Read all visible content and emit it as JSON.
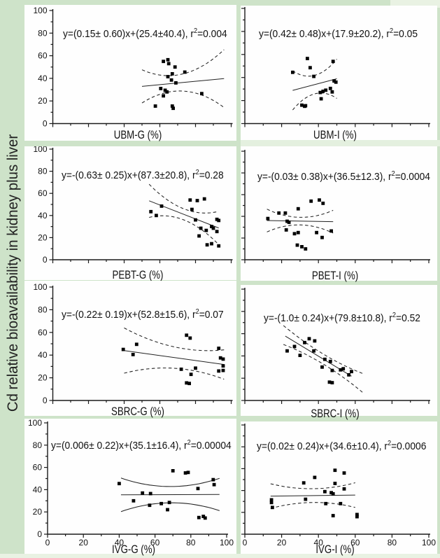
{
  "figure": {
    "ylabel": "Cd relative bioavailability in kidney plus liver",
    "background_color": "#cee3c9",
    "plot_background": "#fefefe",
    "ink_color": "#111111",
    "marker": {
      "shape": "square",
      "color": "#000000"
    }
  },
  "chart_data": [
    {
      "type": "scatter",
      "xlabel": "UBM-G (%)",
      "eq": {
        "left": "y=(0.15± 0.60)x+(25.4±40.4), r",
        "sup": "2",
        "right": "=0.004"
      },
      "x_range": [
        0,
        100
      ],
      "y_range": [
        0,
        100
      ],
      "x_major_tick": 20,
      "x_minor_tick": 10,
      "y_major_tick": 20,
      "y_minor_tick": 10,
      "y_tick_labels": [
        "0",
        "20",
        "40",
        "60",
        "80",
        "100"
      ],
      "fit": {
        "slope": 0.15,
        "intercept": 25.4,
        "x_start": 50,
        "x_end": 96
      },
      "ci": {
        "style": "dashed",
        "half_mid": 7,
        "half_end_extra": 16,
        "xm": 68,
        "hr": 26
      },
      "points": [
        [
          57.5,
          15.5
        ],
        [
          60.5,
          31
        ],
        [
          62,
          55
        ],
        [
          62,
          24.5
        ],
        [
          63,
          29.5
        ],
        [
          64,
          28
        ],
        [
          64.5,
          56.5
        ],
        [
          64.5,
          41.5
        ],
        [
          65,
          53
        ],
        [
          66.5,
          38.5
        ],
        [
          67,
          44
        ],
        [
          67,
          15.5
        ],
        [
          67.5,
          13.5
        ],
        [
          68.5,
          50
        ],
        [
          69,
          36
        ],
        [
          74,
          45.5
        ],
        [
          83.5,
          26.5
        ]
      ]
    },
    {
      "type": "scatter",
      "xlabel": "UBM-I (%)",
      "eq": {
        "left": "y=(0.42± 0.48)x+(17.9±20.2), r",
        "sup": "2",
        "right": "=0.05"
      },
      "x_range": [
        0,
        100
      ],
      "y_range": [
        0,
        100
      ],
      "x_major_tick": 20,
      "x_minor_tick": 10,
      "y_major_tick": 20,
      "y_minor_tick": 10,
      "fit": {
        "slope": 0.42,
        "intercept": 17.9,
        "x_start": 26,
        "x_end": 50
      },
      "ci": {
        "style": "dashed",
        "half_mid": 8,
        "half_end_extra": 9
      },
      "points": [
        [
          26,
          44.5
        ],
        [
          31,
          16
        ],
        [
          32.5,
          15
        ],
        [
          33,
          15.5
        ],
        [
          34,
          56.5
        ],
        [
          35.5,
          48.5
        ],
        [
          37.5,
          41
        ],
        [
          41,
          27
        ],
        [
          41.5,
          21.5
        ],
        [
          42.5,
          28
        ],
        [
          44,
          29
        ],
        [
          46.5,
          30.5
        ],
        [
          47.5,
          27.5
        ],
        [
          48,
          54
        ],
        [
          48.5,
          37
        ],
        [
          49.5,
          36
        ]
      ]
    },
    {
      "type": "scatter",
      "xlabel": "PEBT-G (%)",
      "eq": {
        "left": "y=-(0.63± 0.25)x+(87.3±20.8), r",
        "sup": "2",
        "right": "=0.28"
      },
      "x_range": [
        0,
        100
      ],
      "y_range": [
        0,
        100
      ],
      "x_major_tick": 20,
      "x_minor_tick": 10,
      "y_major_tick": 20,
      "y_minor_tick": 10,
      "y_tick_labels": [
        "0",
        "20",
        "40",
        "60",
        "80",
        "100"
      ],
      "fit": {
        "slope": -0.63,
        "intercept": 87.3,
        "x_start": 54,
        "x_end": 93
      },
      "ci": {
        "style": "dashed",
        "half_mid": 5,
        "half_end_extra": 10
      },
      "points": [
        [
          55,
          43.5
        ],
        [
          58,
          40
        ],
        [
          61,
          48.5
        ],
        [
          77,
          54
        ],
        [
          78,
          45.5
        ],
        [
          80,
          36
        ],
        [
          81,
          53.5
        ],
        [
          82,
          21.5
        ],
        [
          83,
          28.5
        ],
        [
          85,
          55
        ],
        [
          86,
          26.5
        ],
        [
          86.5,
          13.5
        ],
        [
          89,
          30
        ],
        [
          89,
          14.5
        ],
        [
          90,
          28.5
        ],
        [
          92,
          36.5
        ],
        [
          92,
          25.5
        ],
        [
          93,
          35.5
        ],
        [
          93,
          12.5
        ]
      ]
    },
    {
      "type": "scatter",
      "xlabel": "PBET-I (%)",
      "eq": {
        "left": "y=-(0.03± 0.38)x+(36.5±12.3), r",
        "sup": "2",
        "right": "=0.0004"
      },
      "x_range": [
        0,
        100
      ],
      "y_range": [
        0,
        100
      ],
      "x_major_tick": 20,
      "x_minor_tick": 10,
      "y_major_tick": 20,
      "y_minor_tick": 10,
      "fit": {
        "slope": -0.03,
        "intercept": 36.5,
        "x_start": 12,
        "x_end": 48
      },
      "ci": {
        "style": "dashed",
        "half_mid": 3.5,
        "half_end_extra": 7
      },
      "points": [
        [
          12.5,
          38
        ],
        [
          18.5,
          43
        ],
        [
          22,
          43
        ],
        [
          22.5,
          27.5
        ],
        [
          23,
          35.5
        ],
        [
          24,
          34.5
        ],
        [
          27,
          24
        ],
        [
          28.5,
          13.5
        ],
        [
          29,
          47
        ],
        [
          29,
          25
        ],
        [
          31,
          12
        ],
        [
          33,
          10
        ],
        [
          36,
          54
        ],
        [
          39,
          25
        ],
        [
          40.5,
          55
        ],
        [
          42,
          20.5
        ],
        [
          42.5,
          52
        ],
        [
          47,
          26.5
        ]
      ]
    },
    {
      "type": "scatter",
      "xlabel": "SBRC-G (%)",
      "eq": {
        "left": "y=-(0.22± 0.19)x+(52.8±15.6), r",
        "sup": "2",
        "right": "=0.07"
      },
      "x_range": [
        0,
        100
      ],
      "y_range": [
        0,
        100
      ],
      "x_major_tick": 20,
      "x_minor_tick": 10,
      "y_major_tick": 20,
      "y_minor_tick": 10,
      "y_tick_labels": [
        "0",
        "20",
        "40",
        "60",
        "80",
        "100"
      ],
      "fit": {
        "slope": -0.22,
        "intercept": 52.8,
        "x_start": 40,
        "x_end": 96
      },
      "ci": {
        "style": "dashed",
        "half_mid": 9,
        "half_end_extra": 7,
        "xm": 75
      },
      "points": [
        [
          39.5,
          45
        ],
        [
          45,
          40.5
        ],
        [
          47,
          49.5
        ],
        [
          72,
          27.5
        ],
        [
          75,
          57.5
        ],
        [
          75,
          15.5
        ],
        [
          76.5,
          15
        ],
        [
          77,
          55
        ],
        [
          77.5,
          23
        ],
        [
          80,
          28.5
        ],
        [
          93,
          46
        ],
        [
          93,
          26
        ],
        [
          94,
          37.5
        ],
        [
          95.5,
          36.5
        ],
        [
          95.5,
          30.5
        ],
        [
          95.5,
          26.5
        ]
      ]
    },
    {
      "type": "scatter",
      "xlabel": "SBRC-I (%)",
      "eq": {
        "left": "y=-(1.0± 0.24)x+(79.8±10.8), r",
        "sup": "2",
        "right": "=0.52"
      },
      "x_range": [
        0,
        100
      ],
      "y_range": [
        0,
        100
      ],
      "x_major_tick": 20,
      "x_minor_tick": 10,
      "y_major_tick": 20,
      "y_minor_tick": 10,
      "fit": {
        "slope": -1.0,
        "intercept": 79.8,
        "x_start": 22,
        "x_end": 58
      },
      "ci": {
        "style": "dashed",
        "half_mid": 4.5,
        "half_end_extra": 4,
        "x_start": 21,
        "x_end": 64
      },
      "points": [
        [
          23,
          44.5
        ],
        [
          27,
          48.5
        ],
        [
          30,
          40.5
        ],
        [
          32.5,
          52
        ],
        [
          35,
          55.5
        ],
        [
          37.5,
          44.5
        ],
        [
          38,
          53.5
        ],
        [
          42,
          30
        ],
        [
          43.5,
          37
        ],
        [
          46,
          16.5
        ],
        [
          46.5,
          35
        ],
        [
          47.5,
          27
        ],
        [
          47.5,
          16
        ],
        [
          52,
          27.5
        ],
        [
          53.5,
          28.5
        ],
        [
          56.5,
          23
        ],
        [
          58,
          26
        ]
      ]
    },
    {
      "type": "scatter",
      "xlabel": "IVG-G (%)",
      "eq": {
        "left": "y=(0.006± 0.22)x+(35.1±16.4), r",
        "sup": "2",
        "right": "=0.00004"
      },
      "x_range": [
        0,
        100
      ],
      "y_range": [
        0,
        100
      ],
      "x_major_tick": 20,
      "x_minor_tick": 10,
      "y_major_tick": 20,
      "y_minor_tick": 10,
      "y_tick_labels": [
        "0",
        "20",
        "40",
        "60",
        "80",
        "100"
      ],
      "x_tick_labels": [
        "0",
        "20",
        "40",
        "60",
        "80",
        "100"
      ],
      "fit": {
        "slope": 0.006,
        "intercept": 35.1,
        "x_start": 41,
        "x_end": 96
      },
      "ci": {
        "style": "solid",
        "half_mid": 7.3,
        "half_end_extra": 7.5,
        "xm": 69
      },
      "points": [
        [
          40,
          45.5
        ],
        [
          48,
          30
        ],
        [
          53,
          37
        ],
        [
          57,
          26
        ],
        [
          57.5,
          36.5
        ],
        [
          63.5,
          27.5
        ],
        [
          67,
          22
        ],
        [
          68,
          28.5
        ],
        [
          70,
          57
        ],
        [
          77,
          55
        ],
        [
          78.5,
          55.5
        ],
        [
          84,
          41
        ],
        [
          84.5,
          15
        ],
        [
          87,
          16
        ],
        [
          88,
          14.5
        ],
        [
          92.5,
          49
        ],
        [
          93,
          44.5
        ]
      ]
    },
    {
      "type": "scatter",
      "xlabel": "IVG-I (%)",
      "eq": {
        "left": "y=(0.02± 0.24)x+(34.6±10.4), r",
        "sup": "2",
        "right": "=0.0006"
      },
      "x_range": [
        0,
        100
      ],
      "y_range": [
        0,
        100
      ],
      "x_major_tick": 20,
      "x_minor_tick": 10,
      "y_major_tick": 20,
      "y_minor_tick": 10,
      "x_tick_labels": [
        "0",
        "20",
        "40",
        "60",
        "80",
        "100"
      ],
      "fit": {
        "slope": 0.02,
        "intercept": 34.6,
        "x_start": 14,
        "x_end": 60
      },
      "ci": {
        "style": "dashed",
        "half_mid": 6.3,
        "half_end_extra": 5
      },
      "points": [
        [
          14.5,
          31.5
        ],
        [
          14.5,
          29
        ],
        [
          15,
          24.5
        ],
        [
          32,
          47
        ],
        [
          33,
          32
        ],
        [
          38,
          52
        ],
        [
          43.5,
          39
        ],
        [
          44,
          28
        ],
        [
          47,
          38
        ],
        [
          48,
          37
        ],
        [
          48,
          17
        ],
        [
          49,
          58.5
        ],
        [
          49,
          46.5
        ],
        [
          52,
          28
        ],
        [
          54,
          56
        ],
        [
          54,
          41.5
        ],
        [
          61,
          18
        ],
        [
          61,
          16
        ]
      ]
    }
  ]
}
